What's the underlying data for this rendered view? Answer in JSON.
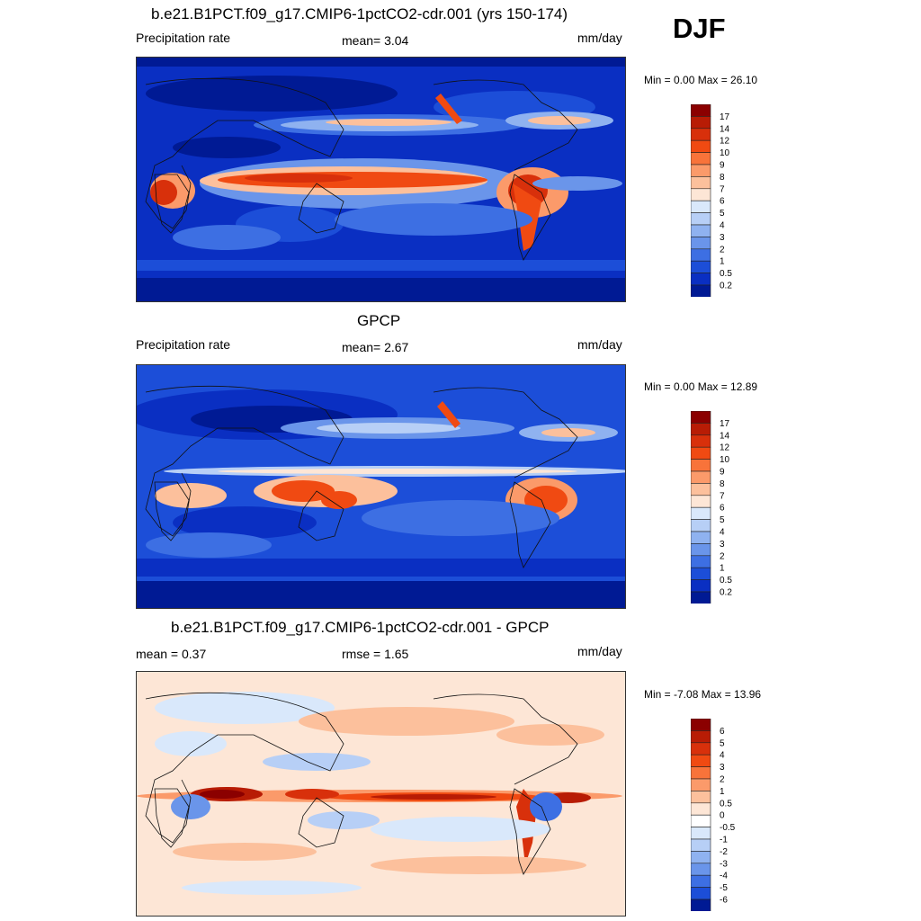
{
  "season": "DJF",
  "panels": [
    {
      "title": "b.e21.B1PCT.f09_g17.CMIP6-1pctCO2-cdr.001 (yrs 150-174)",
      "left_label": "Precipitation rate",
      "center_label": "mean=   3.04",
      "units": "mm/day",
      "minmax": "Min =    0.00 Max =  26.10",
      "colorbar": {
        "labels": [
          "17",
          "14",
          "12",
          "10",
          "9",
          "8",
          "7",
          "6",
          "5",
          "4",
          "3",
          "2",
          "1",
          "0.5",
          "0.2"
        ],
        "colors": [
          "#8b0000",
          "#b81c05",
          "#d8300b",
          "#f04a12",
          "#f8733a",
          "#fb9a6a",
          "#fcc09c",
          "#fde6d6",
          "#d9e8fb",
          "#b7cff6",
          "#8fb2f0",
          "#6a95ea",
          "#3d6fe3",
          "#1c4ed8",
          "#0a2fc2",
          "#001a94"
        ]
      }
    },
    {
      "title": "GPCP",
      "left_label": "Precipitation rate",
      "center_label": "mean=   2.67",
      "units": "mm/day",
      "minmax": "Min =    0.00 Max =  12.89",
      "colorbar": {
        "labels": [
          "17",
          "14",
          "12",
          "10",
          "9",
          "8",
          "7",
          "6",
          "5",
          "4",
          "3",
          "2",
          "1",
          "0.5",
          "0.2"
        ],
        "colors": [
          "#8b0000",
          "#b81c05",
          "#d8300b",
          "#f04a12",
          "#f8733a",
          "#fb9a6a",
          "#fcc09c",
          "#fde6d6",
          "#d9e8fb",
          "#b7cff6",
          "#8fb2f0",
          "#6a95ea",
          "#3d6fe3",
          "#1c4ed8",
          "#0a2fc2",
          "#001a94"
        ]
      }
    },
    {
      "title": "b.e21.B1PCT.f09_g17.CMIP6-1pctCO2-cdr.001 - GPCP",
      "left_label": "mean =   0.37",
      "center_label": "rmse =   1.65",
      "units": "mm/day",
      "minmax": "Min =  -7.08 Max =  13.96",
      "colorbar": {
        "labels": [
          "6",
          "5",
          "4",
          "3",
          "2",
          "1",
          "0.5",
          "0",
          "-0.5",
          "-1",
          "-2",
          "-3",
          "-4",
          "-5",
          "-6"
        ],
        "colors": [
          "#8b0000",
          "#b81c05",
          "#d8300b",
          "#f04a12",
          "#f8733a",
          "#fb9a6a",
          "#fcc09c",
          "#fde6d6",
          "#ffffff",
          "#d9e8fb",
          "#b7cff6",
          "#8fb2f0",
          "#6a95ea",
          "#3d6fe3",
          "#1c4ed8",
          "#001a94"
        ]
      }
    }
  ]
}
